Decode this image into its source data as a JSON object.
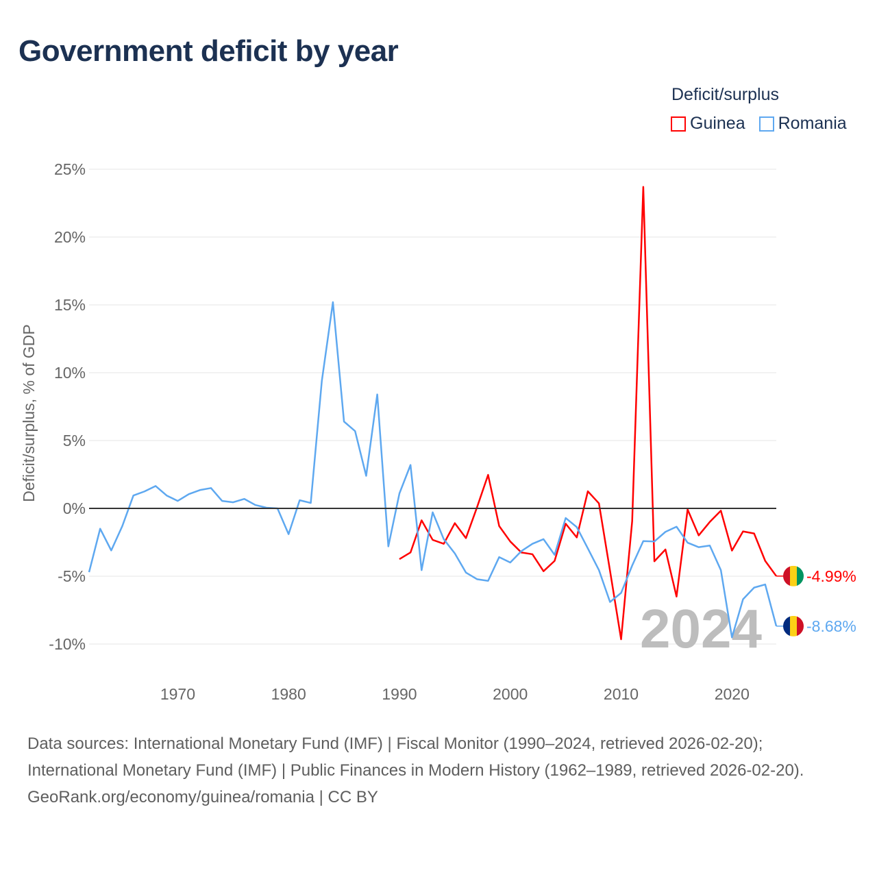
{
  "title": "Government deficit by year",
  "legend": {
    "title": "Deficit/surplus",
    "items": [
      {
        "label": "Guinea",
        "color": "#ff0000"
      },
      {
        "label": "Romania",
        "color": "#5ea8f0"
      }
    ]
  },
  "chart_data": {
    "type": "line",
    "title": "Government deficit by year",
    "xlabel": "",
    "ylabel": "Deficit/surplus, % of GDP",
    "xlim": [
      1962,
      2024
    ],
    "ylim": [
      -10,
      25
    ],
    "yticks": [
      25,
      20,
      15,
      10,
      5,
      0,
      -5,
      -10
    ],
    "ytick_labels": [
      "25%",
      "20%",
      "15%",
      "10%",
      "5%",
      "0%",
      "-5%",
      "-10%"
    ],
    "xticks": [
      1970,
      1980,
      1990,
      2000,
      2010,
      2020
    ],
    "xtick_labels": [
      "1970",
      "1980",
      "1990",
      "2000",
      "2010",
      "2020"
    ],
    "grid": true,
    "legend_position": "top-right",
    "current_year_label": "2024",
    "series": [
      {
        "name": "Guinea",
        "color": "#ff0000",
        "end_label": "-4.99%",
        "x_start": 1990,
        "values": [
          -3.74,
          -3.25,
          -0.88,
          -2.32,
          -2.61,
          -1.09,
          -2.19,
          0.08,
          2.47,
          -1.3,
          -2.44,
          -3.25,
          -3.38,
          -4.63,
          -3.87,
          -1.13,
          -2.14,
          1.26,
          0.37,
          -4.6,
          -9.65,
          -0.93,
          23.7,
          -3.9,
          -3.03,
          -6.5,
          -0.08,
          -1.99,
          -1.0,
          -0.17,
          -3.11,
          -1.7,
          -1.85,
          -3.87,
          -4.99
        ]
      },
      {
        "name": "Romania",
        "color": "#5ea8f0",
        "end_label": "-8.68%",
        "x_start": 1962,
        "values": [
          -4.7,
          -1.5,
          -3.1,
          -1.3,
          0.95,
          1.25,
          1.65,
          0.95,
          0.55,
          1.05,
          1.35,
          1.5,
          0.55,
          0.45,
          0.7,
          0.25,
          0.05,
          0.0,
          -1.9,
          0.6,
          0.4,
          9.4,
          15.2,
          6.4,
          5.7,
          2.4,
          8.4,
          -2.8,
          1.1,
          3.2,
          -4.55,
          -0.29,
          -2.27,
          -3.32,
          -4.73,
          -5.22,
          -5.34,
          -3.59,
          -3.99,
          -3.15,
          -2.61,
          -2.27,
          -3.42,
          -0.71,
          -1.38,
          -2.95,
          -4.55,
          -6.9,
          -6.23,
          -4.21,
          -2.41,
          -2.44,
          -1.73,
          -1.35,
          -2.53,
          -2.86,
          -2.74,
          -4.55,
          -9.51,
          -6.7,
          -5.84,
          -5.61,
          -8.68
        ]
      }
    ]
  },
  "footer": {
    "sources": "Data sources: International Monetary Fund (IMF) | Fiscal Monitor (1990–2024, retrieved 2026-02-20); International Monetary Fund (IMF) | Public Finances in Modern History (1962–1989, retrieved 2026-02-20).",
    "link": "GeoRank.org/economy/guinea/romania | CC BY"
  }
}
